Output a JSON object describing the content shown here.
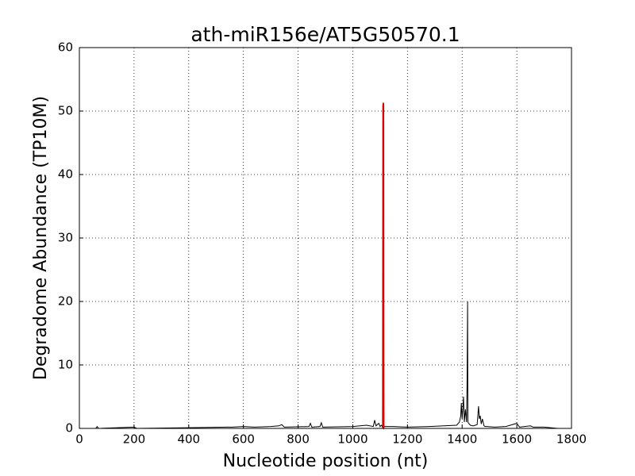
{
  "chart_data": {
    "type": "line",
    "title": "ath-miR156e/AT5G50570.1",
    "x_label": "Nucleotide position (nt)",
    "y_label": "Degradome Abundance (TP10M)",
    "xlim": [
      0,
      1800
    ],
    "xticks": [
      0,
      200,
      400,
      600,
      800,
      1000,
      1200,
      1400,
      1600,
      1800
    ],
    "ylim": [
      0,
      60
    ],
    "yticks": [
      0,
      10,
      20,
      30,
      40,
      50,
      60
    ],
    "grid": true,
    "series": [
      {
        "color": "#000000",
        "x": [
          0,
          60,
          65,
          70,
          200,
          210,
          540,
          560,
          600,
          640,
          700,
          730,
          740,
          750,
          840,
          845,
          850,
          880,
          885,
          890,
          1000,
          1050,
          1075,
          1080,
          1085,
          1095,
          1100,
          1105,
          1112,
          1113,
          1114,
          1150,
          1200,
          1280,
          1380,
          1390,
          1395,
          1397,
          1400,
          1405,
          1408,
          1412,
          1416,
          1418,
          1420,
          1421,
          1424,
          1430,
          1440,
          1455,
          1460,
          1463,
          1466,
          1470,
          1474,
          1480,
          1484,
          1490,
          1520,
          1560,
          1600,
          1610,
          1650,
          1660,
          1700,
          1750
        ],
        "values": [
          0,
          0,
          0.3,
          0,
          0.2,
          0,
          0.2,
          0.2,
          0.3,
          0.2,
          0.3,
          0.4,
          0.6,
          0.2,
          0.3,
          0.8,
          0.2,
          0.3,
          0.9,
          0.2,
          0.3,
          0.5,
          0.3,
          1.3,
          0.4,
          0.8,
          0.3,
          0.5,
          0,
          12.5,
          0.3,
          0.3,
          0.2,
          0.3,
          0.5,
          1,
          2,
          4,
          1.5,
          5,
          1,
          3,
          1,
          7,
          20,
          1,
          0.8,
          0.5,
          0.4,
          0.6,
          3.5,
          1.5,
          2,
          0.7,
          1.5,
          0.4,
          0.3,
          0.3,
          0.2,
          0.3,
          0.8,
          0.2,
          0.4,
          0.2,
          0.2,
          0
        ]
      },
      {
        "color": "#e00000",
        "x": [
          1110,
          1111,
          1112,
          1113
        ],
        "values": [
          0,
          50.8,
          51.3,
          0
        ]
      }
    ]
  }
}
